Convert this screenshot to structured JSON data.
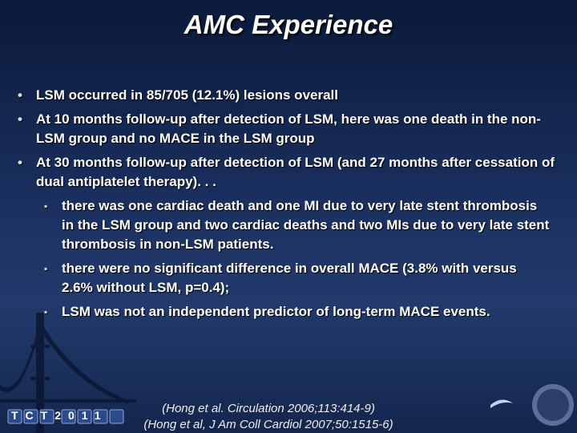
{
  "title": "AMC Experience",
  "bullets": [
    {
      "text": "LSM occurred in 85/705 (12.1%) lesions  overall"
    },
    {
      "text": "At 10 months follow-up after detection of LSM, here was one death in the non-LSM group and no MACE in the LSM group"
    },
    {
      "text": "At 30 months follow-up after detection of LSM (and 27 months after cessation of dual antiplatelet therapy). . .",
      "sub_bullets": [
        "there was one cardiac death and one MI due to very late stent thrombosis in the LSM group and two cardiac deaths and two MIs due to very late stent thrombosis in non-LSM patients.",
        "there were no significant difference in overall MACE (3.8% with versus 2.6% without LSM, p=0.4);",
        "LSM was not an independent predictor of long-term MACE events."
      ]
    }
  ],
  "citations": [
    "(Hong et al. Circulation 2006;113:414-9)",
    "(Hong et al, J Am Coll Cardiol 2007;50:1515-6)"
  ],
  "footer_logo": "TCT2011"
}
